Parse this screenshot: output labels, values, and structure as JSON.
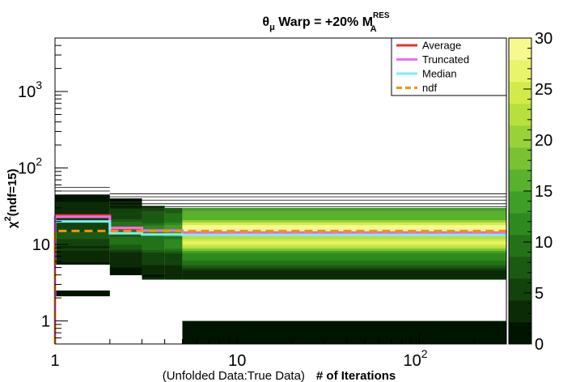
{
  "chart_data": {
    "type": "heatmap",
    "title": {
      "prefix": "θ",
      "prefix_sub": "μ",
      "main": " Warp = +20% M",
      "sup": "RES",
      "sub": "A"
    },
    "xlabel": {
      "part1": "(Unfolded Data:True Data)",
      "part2": "# of Iterations"
    },
    "ylabel": {
      "main": "χ",
      "sup": "2",
      "rest": "(ndf=15)"
    },
    "x_axis": {
      "scale": "log",
      "range": [
        1,
        300
      ],
      "ticks": [
        {
          "value": 1,
          "label": "1"
        },
        {
          "value": 10,
          "label": "10"
        },
        {
          "value": 100,
          "label": "10",
          "sup": "2"
        }
      ]
    },
    "y_axis": {
      "scale": "log",
      "range": [
        0.5,
        5000
      ],
      "ticks": [
        {
          "value": 1,
          "label": "1"
        },
        {
          "value": 10,
          "label": "10"
        },
        {
          "value": 100,
          "label": "10",
          "sup": "2"
        },
        {
          "value": 1000,
          "label": "10",
          "sup": "3"
        }
      ]
    },
    "z_axis": {
      "range": [
        0,
        30
      ],
      "ticks": [
        {
          "value": 0,
          "label": "0"
        },
        {
          "value": 5,
          "label": "5"
        },
        {
          "value": 10,
          "label": "10"
        },
        {
          "value": 15,
          "label": "15"
        },
        {
          "value": 20,
          "label": "20"
        },
        {
          "value": 25,
          "label": "25"
        },
        {
          "value": 30,
          "label": "30"
        }
      ]
    },
    "palette": [
      "#001500",
      "#0b2b06",
      "#13430c",
      "#1b5a12",
      "#247218",
      "#2e8a1e",
      "#3f9e27",
      "#5ab12e",
      "#78c233",
      "#98d238",
      "#b7df3d",
      "#d3eb4a",
      "#e8f46c",
      "#f5f98f"
    ],
    "legend": {
      "position": "top-right",
      "entries": [
        {
          "label": "Average",
          "color": "#e8312b",
          "style": "solid"
        },
        {
          "label": "Truncated",
          "color": "#f26cf0",
          "style": "solid"
        },
        {
          "label": "Median",
          "color": "#72f1f6",
          "style": "solid"
        },
        {
          "label": "ndf",
          "color": "#f3930f",
          "style": "dashed"
        }
      ]
    },
    "x_bins": [
      {
        "x0": 1,
        "x1": 2,
        "y_min": 5.5,
        "y_max": 45,
        "z_peak": 6,
        "z_floor": 1
      },
      {
        "x0": 2,
        "x1": 3,
        "y_min": 4.0,
        "y_max": 40,
        "z_peak": 9,
        "z_floor": 1
      },
      {
        "x0": 3,
        "x1": 4,
        "y_min": 3.5,
        "y_max": 32,
        "z_peak": 11,
        "z_floor": 2
      },
      {
        "x0": 4,
        "x1": 5,
        "y_min": 3.5,
        "y_max": 30,
        "z_peak": 13,
        "z_floor": 2
      },
      {
        "x0": 5,
        "x1": 300,
        "y_min": 3.5,
        "y_max": 30,
        "z_peak": 26,
        "z_floor": 3
      }
    ],
    "extra_cells": [
      {
        "x0": 1,
        "x1": 2,
        "y0": 2.1,
        "y1": 2.5,
        "z": 1
      },
      {
        "x0": 5,
        "x1": 300,
        "y0": 0.5,
        "y1": 1.0,
        "z": 1
      }
    ],
    "outline_levels": [
      {
        "x0": 1,
        "x1": 2,
        "y": [
          50,
          56
        ]
      },
      {
        "x0": 2,
        "x1": 300,
        "y": [
          46,
          42,
          38,
          34,
          31
        ]
      }
    ],
    "series": [
      {
        "name": "Average",
        "steps": [
          [
            1,
            24
          ],
          [
            2,
            16
          ],
          [
            3,
            15
          ],
          [
            5,
            14.2
          ],
          [
            300,
            14.2
          ]
        ]
      },
      {
        "name": "Truncated",
        "steps": [
          [
            1,
            23
          ],
          [
            2,
            16.5
          ],
          [
            3,
            15.2
          ],
          [
            5,
            14
          ],
          [
            300,
            14
          ]
        ],
        "left_drop": 0.5
      },
      {
        "name": "Median",
        "steps": [
          [
            1,
            20
          ],
          [
            2,
            14
          ],
          [
            3,
            13.5
          ],
          [
            5,
            13.3
          ],
          [
            300,
            13.3
          ]
        ]
      },
      {
        "name": "ndf",
        "steps": [
          [
            1,
            15
          ],
          [
            300,
            15
          ]
        ],
        "left_drop": 0.5
      }
    ]
  }
}
